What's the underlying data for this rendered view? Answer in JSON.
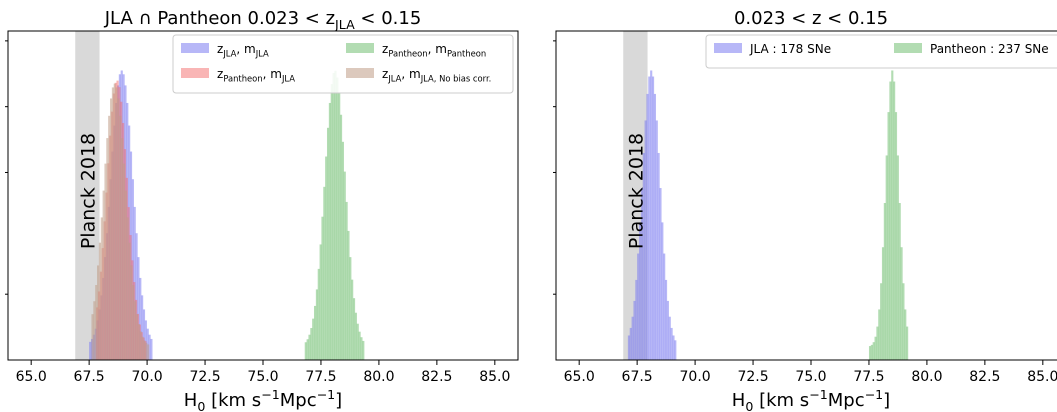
{
  "chart_data": [
    {
      "type": "histogram",
      "title_parts": [
        {
          "t": "JLA ∩ Pantheon 0.023 < z"
        },
        {
          "t": "JLA",
          "sub": true
        },
        {
          "t": " < 0.15"
        }
      ],
      "xlabel_parts": [
        {
          "t": "H"
        },
        {
          "t": "0",
          "sub": true
        },
        {
          "t": " [km s"
        },
        {
          "t": "−1",
          "sup": true
        },
        {
          "t": "Mpc"
        },
        {
          "t": "−1",
          "sup": true
        },
        {
          "t": "]"
        }
      ],
      "xlim": [
        64.0,
        86.0
      ],
      "xticks": [
        65.0,
        67.5,
        70.0,
        72.5,
        75.0,
        77.5,
        80.0,
        82.5,
        85.0
      ],
      "xtick_labels": [
        "65.0",
        "67.5",
        "70.0",
        "72.5",
        "75.0",
        "77.5",
        "80.0",
        "82.5",
        "85.0"
      ],
      "ylim": [
        0,
        1.0
      ],
      "ytick_values": [
        0.97,
        0.77,
        0.57,
        0.2
      ],
      "grid": false,
      "legend_position": "top-right",
      "legend_columns": 2,
      "band": {
        "label": "Planck 2018",
        "x0": 66.9,
        "x1": 67.95,
        "color": "#d9d9d9"
      },
      "series": [
        {
          "legend": [
            {
              "t": "z"
            },
            {
              "t": "JLA",
              "sub": true
            },
            {
              "t": ",  m"
            },
            {
              "t": "JLA",
              "sub": true
            }
          ],
          "color": "#7b7bf0",
          "alpha": 0.55,
          "bins": {
            "start": 67.5,
            "width": 0.08,
            "count": 34,
            "center": 68.9,
            "sigma": 0.48,
            "peak": 0.84
          }
        },
        {
          "legend": [
            {
              "t": "z"
            },
            {
              "t": "Pantheon",
              "sub": true
            },
            {
              "t": ",  m"
            },
            {
              "t": "Pantheon",
              "sub": true
            }
          ],
          "color": "#7fc47f",
          "alpha": 0.6,
          "bins": {
            "start": 76.8,
            "width": 0.08,
            "count": 32,
            "center": 78.1,
            "sigma": 0.44,
            "peak": 0.84
          }
        },
        {
          "legend": [
            {
              "t": "z"
            },
            {
              "t": "Pantheon",
              "sub": true
            },
            {
              "t": ",  m"
            },
            {
              "t": "JLA",
              "sub": true
            }
          ],
          "color": "#f46b6b",
          "alpha": 0.5,
          "bins": {
            "start": 67.8,
            "width": 0.08,
            "count": 27,
            "center": 68.7,
            "sigma": 0.44,
            "peak": 0.81
          }
        },
        {
          "legend": [
            {
              "t": "z"
            },
            {
              "t": "JLA",
              "sub": true
            },
            {
              "t": ",  m"
            },
            {
              "t": "JLA, No bias corr.",
              "sub": true
            }
          ],
          "color": "#bf9c86",
          "alpha": 0.55,
          "bins": {
            "start": 67.6,
            "width": 0.08,
            "count": 31,
            "center": 68.6,
            "sigma": 0.47,
            "peak": 0.8
          }
        }
      ]
    },
    {
      "type": "histogram",
      "title_parts": [
        {
          "t": "0.023 < z < 0.15"
        }
      ],
      "xlabel_parts": [
        {
          "t": "H"
        },
        {
          "t": "0",
          "sub": true
        },
        {
          "t": " [km s"
        },
        {
          "t": "−1",
          "sup": true
        },
        {
          "t": "Mpc"
        },
        {
          "t": "−1",
          "sup": true
        },
        {
          "t": "]"
        }
      ],
      "xlim": [
        64.0,
        86.0
      ],
      "xticks": [
        65.0,
        67.5,
        70.0,
        72.5,
        75.0,
        77.5,
        80.0,
        82.5,
        85.0
      ],
      "xtick_labels": [
        "65.0",
        "67.5",
        "70.0",
        "72.5",
        "75.0",
        "77.5",
        "80.0",
        "82.5",
        "85.0"
      ],
      "ylim": [
        0,
        1.0
      ],
      "ytick_values": [
        0.97,
        0.77,
        0.57,
        0.2
      ],
      "grid": false,
      "legend_position": "top-right",
      "legend_columns": 2,
      "band": {
        "label": "Planck 2018",
        "x0": 66.9,
        "x1": 67.95,
        "color": "#d9d9d9"
      },
      "series": [
        {
          "legend": [
            {
              "t": "JLA : 178 SNe"
            }
          ],
          "color": "#7b7bf0",
          "alpha": 0.55,
          "bins": {
            "start": 67.1,
            "width": 0.08,
            "count": 26,
            "center": 68.1,
            "sigma": 0.38,
            "peak": 0.84
          }
        },
        {
          "legend": [
            {
              "t": "Pantheon : 237 SNe"
            }
          ],
          "color": "#7fc47f",
          "alpha": 0.6,
          "bins": {
            "start": 77.5,
            "width": 0.08,
            "count": 21,
            "center": 78.5,
            "sigma": 0.28,
            "peak": 0.84
          }
        }
      ]
    }
  ]
}
